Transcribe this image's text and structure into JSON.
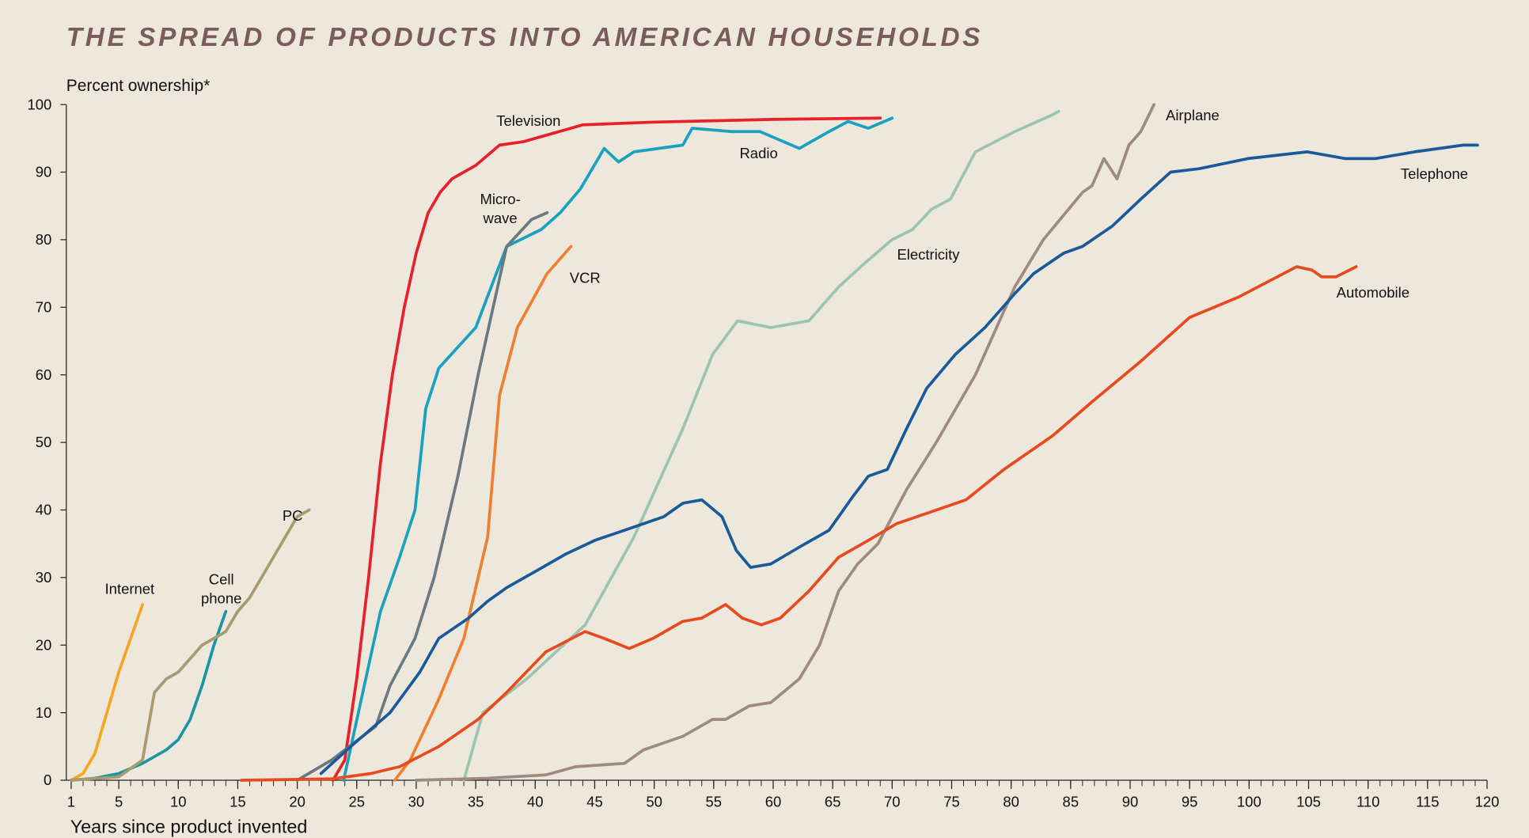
{
  "chart_data": {
    "type": "line",
    "title": "THE SPREAD OF PRODUCTS INTO AMERICAN HOUSEHOLDS",
    "y_label": "Percent ownership*",
    "x_label": "Years since product invented",
    "xlim": [
      1,
      120
    ],
    "ylim": [
      0,
      100
    ],
    "xticks": [
      1,
      5,
      10,
      15,
      20,
      25,
      30,
      35,
      40,
      45,
      50,
      55,
      60,
      65,
      70,
      75,
      80,
      85,
      90,
      95,
      100,
      105,
      110,
      115,
      120
    ],
    "yticks": [
      0,
      10,
      20,
      30,
      40,
      50,
      60,
      70,
      80,
      90,
      100
    ],
    "series": [
      {
        "name": "Internet",
        "color": "#f5a623",
        "x": [
          1,
          2,
          3,
          4,
          5,
          6,
          7
        ],
        "values": [
          0,
          1,
          4,
          10,
          16,
          21,
          26
        ]
      },
      {
        "name": "Cell\nphone",
        "color": "#1a95a5",
        "x": [
          1,
          3,
          5,
          7,
          9,
          10,
          11,
          12,
          13,
          14
        ],
        "values": [
          0,
          0.3,
          1,
          2.5,
          4.5,
          6,
          9,
          14,
          20,
          25
        ]
      },
      {
        "name": "PC",
        "color": "#a89b70",
        "x": [
          1,
          5,
          7,
          8,
          9,
          10,
          11,
          12,
          13,
          14,
          15,
          16,
          17,
          18,
          19,
          20,
          21
        ],
        "values": [
          0,
          0.5,
          3,
          13,
          15,
          16,
          18,
          20,
          21,
          22,
          25,
          27,
          30,
          33,
          36,
          39,
          40
        ]
      },
      {
        "name": "Television",
        "color": "#e8202a",
        "x": [
          23,
          24,
          25,
          26,
          27,
          28,
          29,
          30,
          31,
          32,
          33,
          35,
          37,
          39,
          41,
          44,
          50,
          60,
          69
        ],
        "values": [
          0,
          3,
          15,
          30,
          47,
          60,
          70,
          78,
          84,
          87,
          89,
          91,
          94,
          94.5,
          95.5,
          97,
          97.4,
          97.8,
          98
        ]
      },
      {
        "name": "Radio",
        "color": "#1aa0c0",
        "x": [
          23.9,
          27,
          28.6,
          29.9,
          30.8,
          31.9,
          35,
          37.6,
          40.5,
          42.1,
          43.8,
          45.8,
          47,
          48.3,
          52.4,
          53.2,
          56.5,
          58.9,
          62.2,
          64.7,
          66.3,
          68,
          70
        ],
        "values": [
          0,
          25,
          33,
          40,
          55,
          61,
          67,
          79,
          81.5,
          84,
          87.5,
          93.5,
          91.5,
          93,
          94,
          96.5,
          96,
          96,
          93.5,
          96,
          97.5,
          96.5,
          98
        ]
      },
      {
        "name": "Micro-\nwave",
        "color": "#6a7a80",
        "x": [
          20,
          22.9,
          26.6,
          27.8,
          29.9,
          31.5,
          33.5,
          35.2,
          37.6,
          39.7,
          41
        ],
        "values": [
          0,
          3,
          8,
          14,
          21,
          30,
          45,
          60,
          79,
          83,
          84
        ]
      },
      {
        "name": "VCR",
        "color": "#f08030",
        "x": [
          28.2,
          29.5,
          31.9,
          34,
          36,
          37,
          38.5,
          41,
          43
        ],
        "values": [
          0,
          3,
          12,
          21,
          36,
          57,
          67,
          75,
          79
        ]
      },
      {
        "name": "Electricity",
        "color": "#9cc4b0",
        "x": [
          34,
          35.6,
          39.3,
          44.2,
          48.3,
          52.4,
          54.9,
          57,
          59.8,
          63,
          65.5,
          68,
          70,
          71.7,
          73.3,
          74.9,
          77,
          80.3,
          83.5,
          84
        ],
        "values": [
          0,
          10,
          15,
          23,
          36,
          52,
          63,
          68,
          67,
          68,
          73,
          77,
          80,
          81.5,
          84.5,
          86,
          93,
          96,
          98.5,
          99
        ]
      },
      {
        "name": "Airplane",
        "color": "#a08a80",
        "x": [
          30,
          36,
          40.9,
          43.4,
          47.5,
          49.1,
          52.4,
          54.9,
          56,
          58,
          59.8,
          62.2,
          63.9,
          65.5,
          67.1,
          68.8,
          71.2,
          73.7,
          77,
          80.3,
          82.7,
          86,
          86.8,
          87.8,
          88.9,
          89.9,
          90.9,
          92
        ],
        "values": [
          0,
          0.3,
          0.8,
          2,
          2.5,
          4.5,
          6.5,
          9,
          9,
          11,
          11.5,
          15,
          20,
          28,
          32,
          35,
          43,
          50,
          60,
          73,
          80,
          87,
          88,
          92,
          89,
          94,
          96,
          100
        ]
      },
      {
        "name": "Telephone",
        "color": "#1a5a9a",
        "x": [
          22,
          24.5,
          27.8,
          30.3,
          31.9,
          34.4,
          36,
          37.6,
          40.1,
          42.6,
          45,
          47.5,
          50.8,
          52.4,
          54,
          55.7,
          56.9,
          58.1,
          59.8,
          62.2,
          64.7,
          66.7,
          68,
          69.6,
          71.2,
          72.9,
          75.3,
          77.8,
          80.3,
          81.9,
          84.4,
          86,
          88.5,
          90.9,
          93.4,
          95.8,
          99.9,
          104.9,
          108.1,
          110.6,
          113.9,
          118,
          119.2
        ],
        "values": [
          1,
          5,
          10,
          16,
          21,
          24,
          26.5,
          28.5,
          31,
          33.5,
          35.5,
          37,
          39,
          41,
          41.5,
          39,
          34,
          31.5,
          32,
          34.5,
          37,
          42,
          45,
          46,
          52,
          58,
          63,
          67,
          72,
          75,
          78,
          79,
          82,
          86,
          90,
          90.5,
          92,
          93,
          92,
          92,
          93,
          94,
          94
        ]
      },
      {
        "name": "Automobile",
        "color": "#e84a20",
        "x": [
          15.3,
          22.9,
          26.2,
          28.6,
          31.9,
          35.2,
          37.6,
          40.9,
          44.2,
          45.8,
          47.9,
          49.9,
          52.4,
          54,
          56,
          57.4,
          59,
          60.6,
          63,
          65.5,
          68,
          70.4,
          72.9,
          76.2,
          79.4,
          83.5,
          86.8,
          90.9,
          95,
          99.1,
          104,
          105.3,
          106.1,
          107.3,
          109
        ],
        "values": [
          0,
          0.2,
          1,
          2,
          5,
          9,
          13,
          19,
          22,
          21,
          19.5,
          21,
          23.5,
          24,
          26,
          24,
          23,
          24,
          28,
          33,
          35.5,
          38,
          39.5,
          41.5,
          46,
          51,
          56,
          62,
          68.5,
          71.5,
          76,
          75.5,
          74.5,
          74.5,
          76
        ]
      }
    ]
  }
}
